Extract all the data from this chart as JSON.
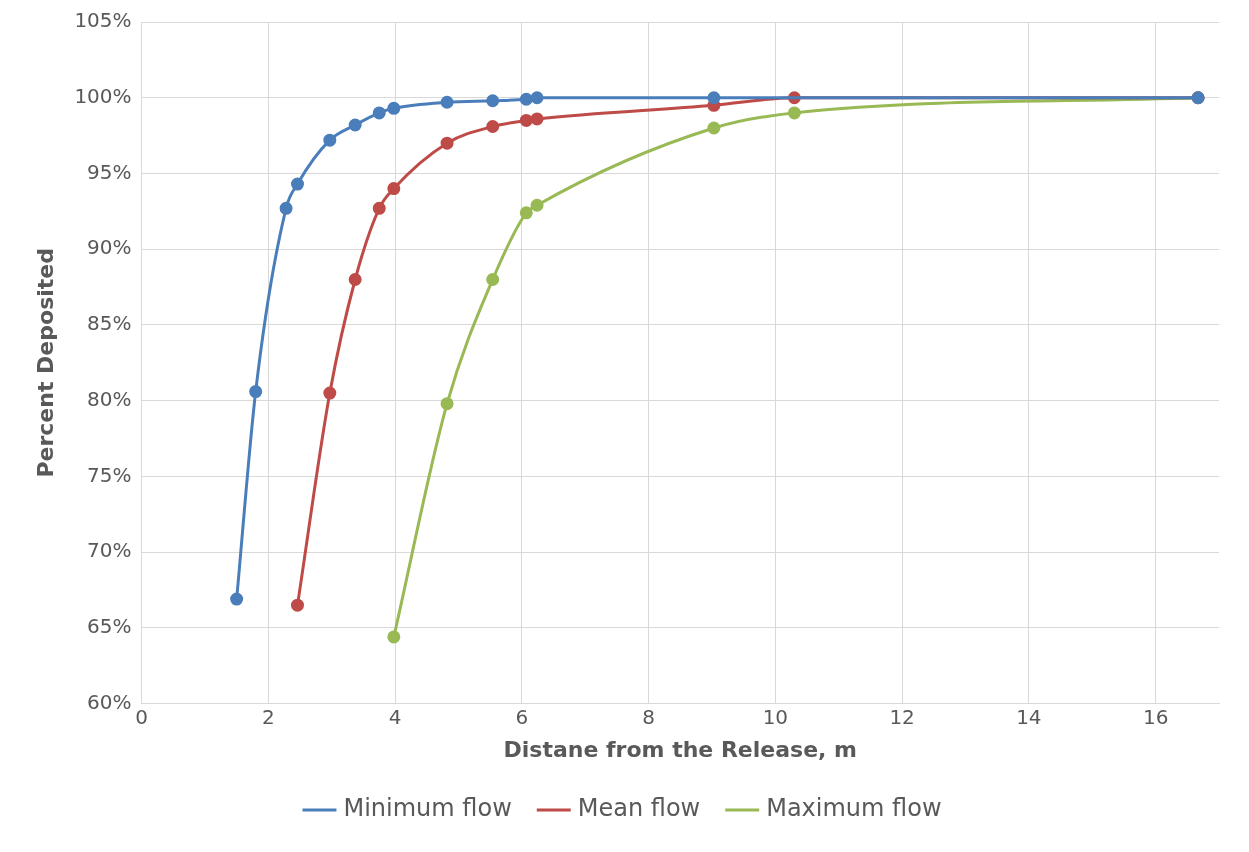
{
  "chart_data": {
    "type": "line",
    "xlabel": "Distane from the Release, m",
    "ylabel": "Percent Deposited",
    "xlim": [
      0,
      17
    ],
    "xticks": [
      0,
      2,
      4,
      6,
      8,
      10,
      12,
      14,
      16
    ],
    "ylim": [
      60,
      105
    ],
    "yticks": [
      {
        "value": 60,
        "label": "60%"
      },
      {
        "value": 65,
        "label": "65%"
      },
      {
        "value": 70,
        "label": "70%"
      },
      {
        "value": 75,
        "label": "75%"
      },
      {
        "value": 80,
        "label": "80%"
      },
      {
        "value": 85,
        "label": "85%"
      },
      {
        "value": 90,
        "label": "90%"
      },
      {
        "value": 95,
        "label": "95%"
      },
      {
        "value": 100,
        "label": "100%"
      },
      {
        "value": 105,
        "label": "105%"
      }
    ],
    "grid": true,
    "legend": "bottom",
    "marker": "circle",
    "line_style": "solid",
    "series": [
      {
        "name": "Minimum flow",
        "color": "#4a7ebb",
        "x": [
          1.5,
          1.8,
          2.28,
          2.46,
          2.97,
          3.37,
          3.75,
          3.98,
          4.82,
          5.54,
          6.07,
          6.24,
          9.03,
          16.67
        ],
        "values": [
          66.9,
          80.6,
          92.7,
          94.3,
          97.2,
          98.2,
          99.0,
          99.3,
          99.7,
          99.8,
          99.9,
          100,
          100,
          100
        ]
      },
      {
        "name": "Mean flow",
        "color": "#be4b48",
        "x": [
          2.46,
          2.97,
          3.37,
          3.75,
          3.98,
          4.82,
          5.54,
          6.07,
          6.24,
          9.03,
          10.3,
          16.67
        ],
        "values": [
          66.5,
          80.5,
          88.0,
          92.7,
          94.0,
          97.0,
          98.1,
          98.5,
          98.6,
          99.5,
          100,
          100
        ]
      },
      {
        "name": "Maximum flow",
        "color": "#98b954",
        "x": [
          3.98,
          4.82,
          5.54,
          6.07,
          6.24,
          9.03,
          10.3,
          16.67
        ],
        "values": [
          64.4,
          79.8,
          88.0,
          92.4,
          92.9,
          98.0,
          99.0,
          100
        ]
      }
    ]
  }
}
